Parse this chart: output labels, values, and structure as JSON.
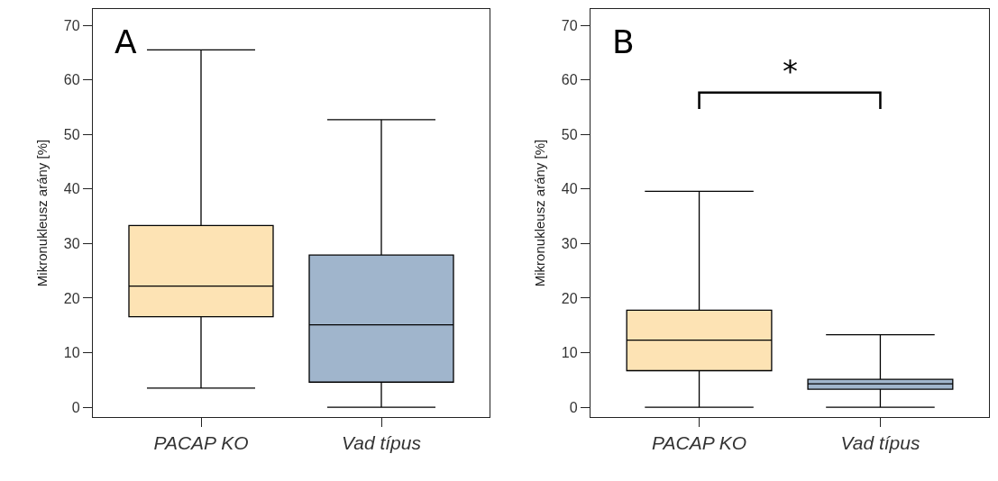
{
  "chart_data": [
    {
      "type": "box",
      "categories": [
        "PACAP KO",
        "Vad típus"
      ],
      "ylabel": "Mikronukleusz arány [%]",
      "ylim": [
        -1.8,
        73
      ],
      "yticks": [
        0,
        10,
        20,
        30,
        40,
        50,
        60,
        70
      ],
      "colors": [
        "#fde3b4",
        "#a0b5cc"
      ],
      "boxes": [
        {
          "low": 3.5,
          "q1": 16.6,
          "median": 22.2,
          "q3": 33.3,
          "high": 65.5
        },
        {
          "low": 0,
          "q1": 4.6,
          "median": 15.1,
          "q3": 27.9,
          "high": 52.7
        }
      ],
      "annotations": [
        "A"
      ]
    },
    {
      "type": "box",
      "categories": [
        "PACAP KO",
        "Vad típus"
      ],
      "ylabel": "Mikronukleusz arány [%]",
      "ylim": [
        -1.8,
        73
      ],
      "yticks": [
        0,
        10,
        20,
        30,
        40,
        50,
        60,
        70
      ],
      "colors": [
        "#fde3b4",
        "#a0b5cc"
      ],
      "boxes": [
        {
          "low": 0,
          "q1": 6.7,
          "median": 12.3,
          "q3": 17.8,
          "high": 39.6
        },
        {
          "low": 0,
          "q1": 3.3,
          "median": 4.3,
          "q3": 5.1,
          "high": 13.3
        }
      ],
      "annotations": [
        "B",
        "*"
      ]
    }
  ]
}
